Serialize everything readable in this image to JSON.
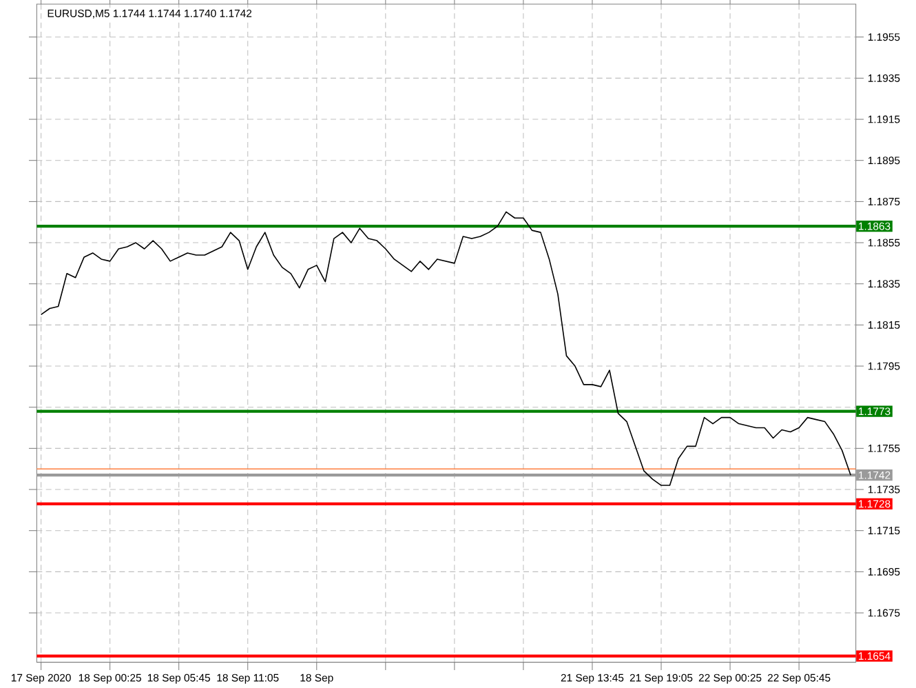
{
  "chart_data": {
    "type": "line",
    "title": "EURUSD,M5  1.1744 1.1744 1.1740 1.1742",
    "color": "#000000",
    "grid": true,
    "ylim": [
      1.1651,
      1.1971
    ],
    "yticks": [
      1.1955,
      1.1935,
      1.1915,
      1.1895,
      1.1875,
      1.1855,
      1.1835,
      1.1815,
      1.1795,
      {
        "value": 1.1775,
        "label": null
      },
      1.1755,
      1.1735,
      1.1715,
      1.1695,
      1.1675
    ],
    "categories": [
      "17 Sep 2020",
      null,
      null,
      null,
      null,
      null,
      null,
      null,
      "18 Sep 00:25",
      null,
      null,
      null,
      null,
      null,
      null,
      null,
      "18 Sep 05:45",
      null,
      null,
      null,
      null,
      null,
      null,
      null,
      "18 Sep 11:05",
      null,
      null,
      null,
      null,
      null,
      null,
      null,
      "18 Sep",
      null,
      null,
      null,
      null,
      null,
      null,
      null,
      null,
      null,
      null,
      null,
      null,
      null,
      null,
      null,
      null,
      null,
      null,
      null,
      null,
      null,
      null,
      null,
      null,
      null,
      null,
      null,
      null,
      null,
      null,
      null,
      "21 Sep 13:45",
      null,
      null,
      null,
      null,
      null,
      null,
      null,
      "21 Sep 19:05",
      null,
      null,
      null,
      null,
      null,
      null,
      null,
      "22 Sep 00:25",
      null,
      null,
      null,
      null,
      null,
      null,
      null,
      "22 Sep 05:45",
      null,
      null,
      null,
      null,
      null,
      null
    ],
    "values": [
      1.182,
      1.1823,
      1.1824,
      1.184,
      1.1838,
      1.1848,
      1.185,
      1.1847,
      1.1846,
      1.1852,
      1.1853,
      1.1855,
      1.1852,
      1.1856,
      1.1852,
      1.1846,
      1.1848,
      1.185,
      1.1849,
      1.1849,
      1.1851,
      1.1853,
      1.186,
      1.1856,
      1.1842,
      1.1853,
      1.186,
      1.1849,
      1.1843,
      1.184,
      1.1833,
      1.1842,
      1.1844,
      1.1836,
      1.1857,
      1.186,
      1.1855,
      1.1862,
      1.1857,
      1.1856,
      1.1852,
      1.1847,
      1.1844,
      1.1841,
      1.1846,
      1.1842,
      1.1847,
      1.1846,
      1.1845,
      1.1858,
      1.1857,
      1.1858,
      1.186,
      1.1863,
      1.187,
      1.1867,
      1.1867,
      1.1861,
      1.186,
      1.1847,
      1.183,
      1.18,
      1.1795,
      1.1786,
      1.1786,
      1.1785,
      1.1793,
      1.1772,
      1.1768,
      1.1756,
      1.1744,
      1.174,
      1.1737,
      1.1737,
      1.175,
      1.1756,
      1.1756,
      1.177,
      1.1767,
      1.177,
      1.177,
      1.1767,
      1.1766,
      1.1765,
      1.1765,
      1.176,
      1.1764,
      1.1763,
      1.1765,
      1.177,
      1.1769,
      1.1768,
      1.1762,
      1.1754,
      1.1742
    ],
    "ref_lines": [
      {
        "axis": "y",
        "value": 1.1863,
        "label": "1.1863",
        "color": "#008000"
      },
      {
        "axis": "y",
        "value": 1.1773,
        "label": "1.1773",
        "color": "#008000"
      },
      {
        "axis": "y",
        "value": 1.1745,
        "label": null,
        "color": "#ff7f3f"
      },
      {
        "axis": "y",
        "value": 1.1742,
        "label": "1.1742",
        "color": "#9a9a9a"
      },
      {
        "axis": "y",
        "value": 1.1728,
        "label": "1.1728",
        "color": "#ff0000"
      },
      {
        "axis": "y",
        "value": 1.1654,
        "label": "1.1654",
        "color": "#ff0000"
      }
    ]
  }
}
